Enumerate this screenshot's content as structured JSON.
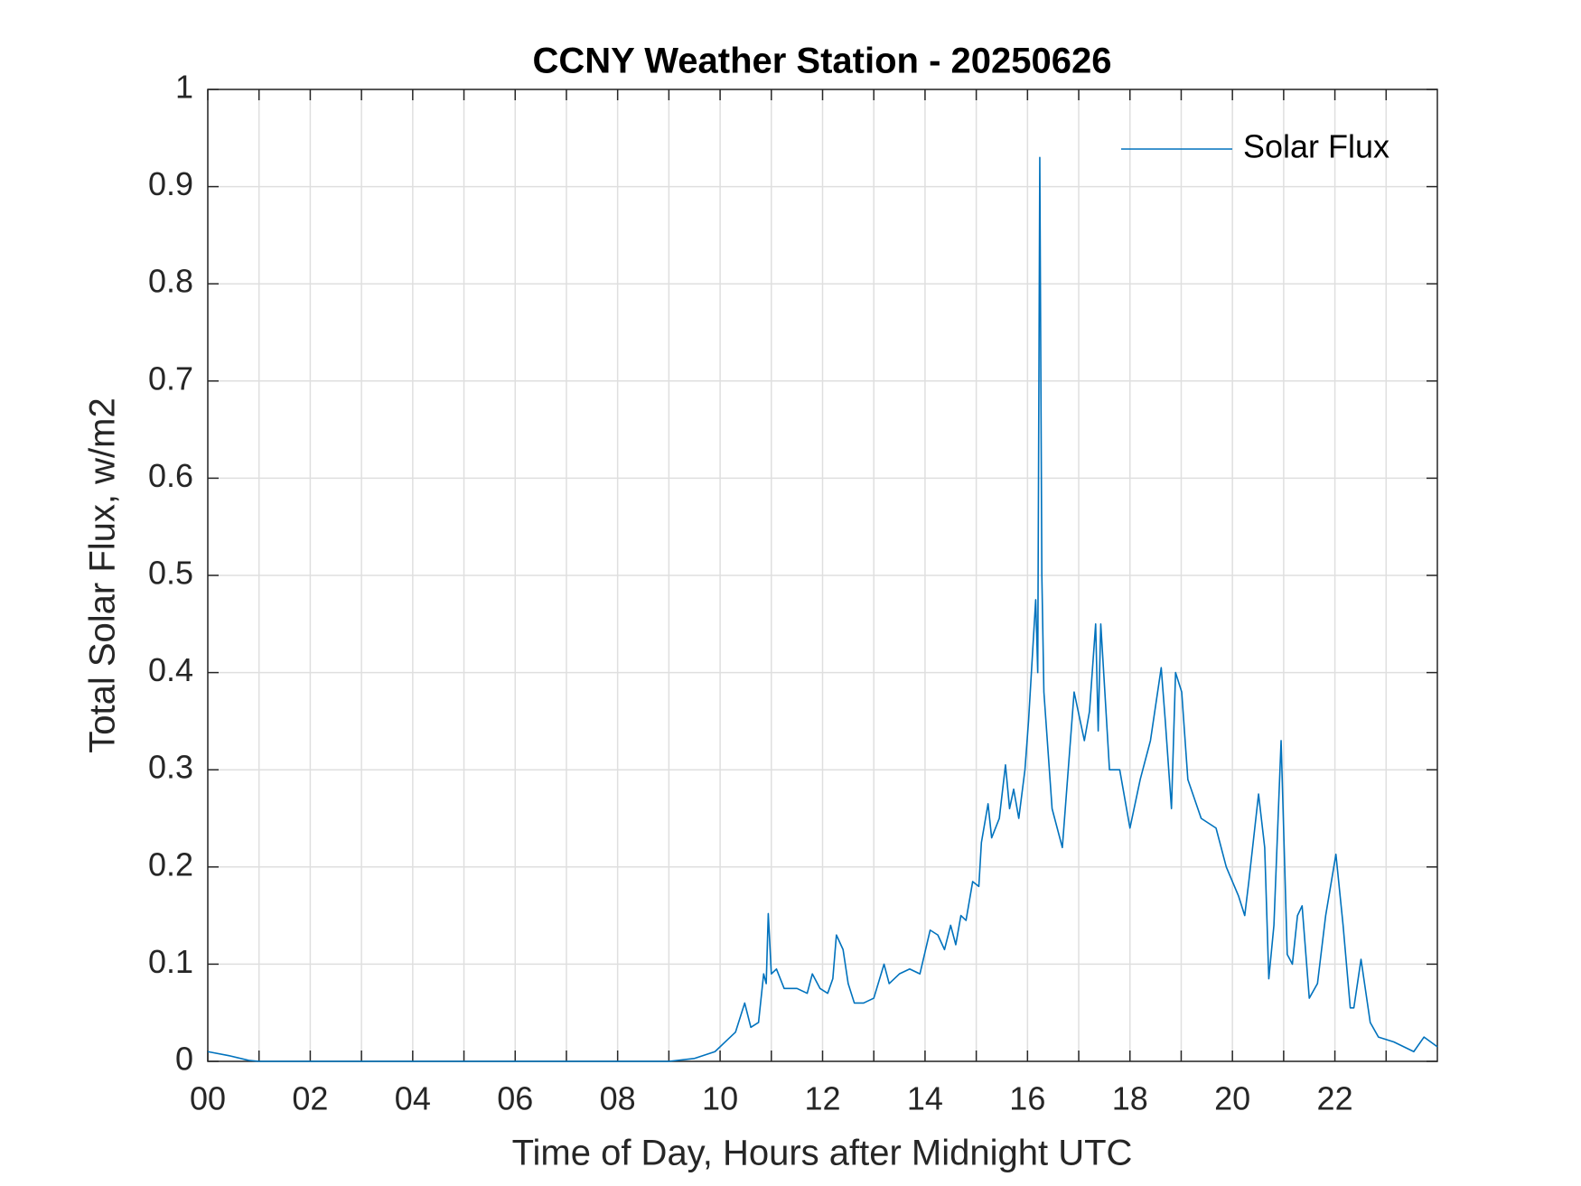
{
  "chart_data": {
    "type": "line",
    "title": "CCNY Weather Station - 20250626",
    "xlabel": "Time of Day, Hours after Midnight UTC",
    "ylabel": "Total Solar Flux, w/m2",
    "x": [
      0,
      0.4,
      0.8,
      1,
      9,
      9.5,
      9.9,
      10.1,
      10.3,
      10.48,
      10.6,
      10.75,
      10.85,
      10.9,
      10.94,
      11.0,
      11.1,
      11.25,
      11.5,
      11.7,
      11.8,
      11.95,
      12.1,
      12.2,
      12.27,
      12.4,
      12.5,
      12.62,
      12.8,
      13.0,
      13.2,
      13.3,
      13.5,
      13.7,
      13.9,
      14.1,
      14.25,
      14.38,
      14.5,
      14.6,
      14.7,
      14.8,
      14.93,
      15.05,
      15.1,
      15.23,
      15.3,
      15.45,
      15.57,
      15.65,
      15.73,
      15.83,
      15.95,
      16.02,
      16.16,
      16.2,
      16.24,
      16.28,
      16.32,
      16.48,
      16.68,
      16.91,
      17.11,
      17.21,
      17.33,
      17.38,
      17.43,
      17.51,
      17.6,
      17.8,
      18.0,
      18.2,
      18.4,
      18.61,
      18.69,
      18.81,
      18.89,
      19.01,
      19.13,
      19.39,
      19.68,
      19.88,
      20.12,
      20.24,
      20.32,
      20.51,
      20.63,
      20.71,
      20.81,
      20.95,
      21.07,
      21.17,
      21.27,
      21.36,
      21.5,
      21.66,
      21.82,
      22.02,
      22.16,
      22.3,
      22.37,
      22.51,
      22.69,
      22.85,
      23.15,
      23.54,
      23.74,
      24.0
    ],
    "series": [
      {
        "name": "Solar Flux",
        "color": "#0072bd",
        "values": [
          0.01,
          0.006,
          0.001,
          0,
          0,
          0.003,
          0.01,
          0.02,
          0.03,
          0.06,
          0.035,
          0.04,
          0.09,
          0.08,
          0.152,
          0.09,
          0.095,
          0.075,
          0.075,
          0.07,
          0.09,
          0.075,
          0.07,
          0.085,
          0.13,
          0.115,
          0.08,
          0.06,
          0.06,
          0.065,
          0.1,
          0.08,
          0.09,
          0.095,
          0.09,
          0.135,
          0.13,
          0.115,
          0.14,
          0.12,
          0.15,
          0.145,
          0.185,
          0.18,
          0.225,
          0.265,
          0.23,
          0.25,
          0.305,
          0.26,
          0.28,
          0.25,
          0.3,
          0.35,
          0.475,
          0.4,
          0.93,
          0.5,
          0.38,
          0.26,
          0.22,
          0.38,
          0.33,
          0.36,
          0.45,
          0.34,
          0.45,
          0.38,
          0.3,
          0.3,
          0.24,
          0.29,
          0.33,
          0.405,
          0.35,
          0.26,
          0.4,
          0.38,
          0.29,
          0.25,
          0.24,
          0.2,
          0.17,
          0.15,
          0.185,
          0.275,
          0.22,
          0.085,
          0.14,
          0.33,
          0.11,
          0.1,
          0.15,
          0.16,
          0.065,
          0.08,
          0.15,
          0.213,
          0.14,
          0.055,
          0.055,
          0.105,
          0.04,
          0.025,
          0.02,
          0.01,
          0.025,
          0.015
        ]
      }
    ],
    "xlim": [
      0,
      24
    ],
    "ylim": [
      0,
      1
    ],
    "xticks": [
      {
        "value": 0,
        "label": "00"
      },
      {
        "value": 2,
        "label": "02"
      },
      {
        "value": 4,
        "label": "04"
      },
      {
        "value": 6,
        "label": "06"
      },
      {
        "value": 8,
        "label": "08"
      },
      10,
      12,
      14,
      16,
      18,
      20,
      22
    ],
    "xminorticks": [
      1,
      3,
      5,
      7,
      9,
      11,
      13,
      15,
      17,
      19,
      21,
      23
    ],
    "yticks": [
      0,
      0.1,
      0.2,
      0.3,
      0.4,
      0.5,
      0.6,
      0.7,
      0.8,
      0.9,
      1
    ],
    "grid": true,
    "legend": "northeast"
  }
}
